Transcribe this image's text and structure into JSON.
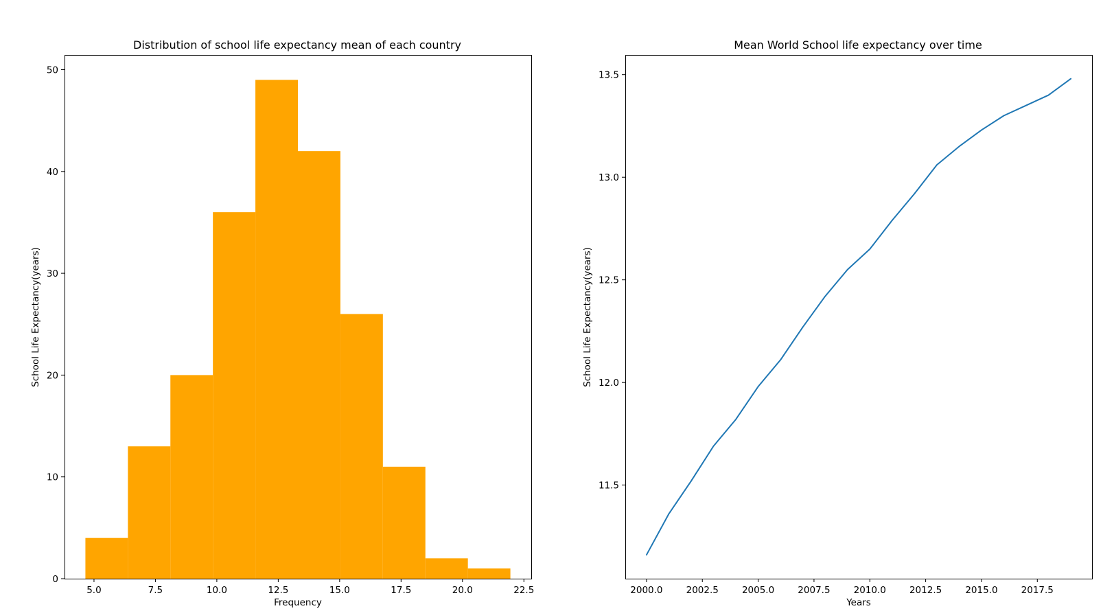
{
  "chart_data": [
    {
      "type": "bar",
      "subtype": "histogram",
      "title": "Distribution of school life expectancy mean of each country",
      "xlabel": "Frequency",
      "ylabel": "School Life Expectancy(years)",
      "color": "#ffa500",
      "bins": [
        {
          "x0": 4.65,
          "x1": 6.38,
          "count": 4
        },
        {
          "x0": 6.38,
          "x1": 8.11,
          "count": 13
        },
        {
          "x0": 8.11,
          "x1": 9.84,
          "count": 20
        },
        {
          "x0": 9.84,
          "x1": 11.57,
          "count": 36
        },
        {
          "x0": 11.57,
          "x1": 13.3,
          "count": 49
        },
        {
          "x0": 13.3,
          "x1": 15.03,
          "count": 42
        },
        {
          "x0": 15.03,
          "x1": 16.76,
          "count": 26
        },
        {
          "x0": 16.76,
          "x1": 18.49,
          "count": 11
        },
        {
          "x0": 18.49,
          "x1": 20.22,
          "count": 2
        },
        {
          "x0": 20.22,
          "x1": 21.95,
          "count": 1
        }
      ],
      "xlim": [
        3.8,
        22.8
      ],
      "ylim": [
        0,
        51.45
      ],
      "xticks": [
        5.0,
        7.5,
        10.0,
        12.5,
        15.0,
        17.5,
        20.0,
        22.5
      ],
      "xtick_labels": [
        "5.0",
        "7.5",
        "10.0",
        "12.5",
        "15.0",
        "17.5",
        "20.0",
        "22.5"
      ],
      "yticks": [
        0,
        10,
        20,
        30,
        40,
        50
      ],
      "ytick_labels": [
        "0",
        "10",
        "20",
        "30",
        "40",
        "50"
      ],
      "grid": false
    },
    {
      "type": "line",
      "title": "Mean World School life expectancy over time",
      "xlabel": "Years",
      "ylabel": "School Life Expectancy(years)",
      "color": "#1f77b4",
      "series": [
        {
          "name": "Mean World School life expectancy",
          "x": [
            2000,
            2001,
            2002,
            2003,
            2004,
            2005,
            2006,
            2007,
            2008,
            2009,
            2010,
            2011,
            2012,
            2013,
            2014,
            2015,
            2016,
            2017,
            2018,
            2019
          ],
          "values": [
            11.16,
            11.36,
            11.52,
            11.69,
            11.82,
            11.98,
            12.11,
            12.27,
            12.42,
            12.55,
            12.65,
            12.79,
            12.92,
            13.06,
            13.15,
            13.23,
            13.3,
            13.35,
            13.4,
            13.48
          ]
        }
      ],
      "xlim": [
        1999.05,
        2019.95
      ],
      "ylim": [
        11.044,
        13.596
      ],
      "xticks": [
        2000.0,
        2002.5,
        2005.0,
        2007.5,
        2010.0,
        2012.5,
        2015.0,
        2017.5
      ],
      "xtick_labels": [
        "2000.0",
        "2002.5",
        "2005.0",
        "2007.5",
        "2010.0",
        "2012.5",
        "2015.0",
        "2017.5"
      ],
      "yticks": [
        11.5,
        12.0,
        12.5,
        13.0,
        13.5
      ],
      "ytick_labels": [
        "11.5",
        "12.0",
        "12.5",
        "13.0",
        "13.5"
      ],
      "grid": false
    }
  ]
}
